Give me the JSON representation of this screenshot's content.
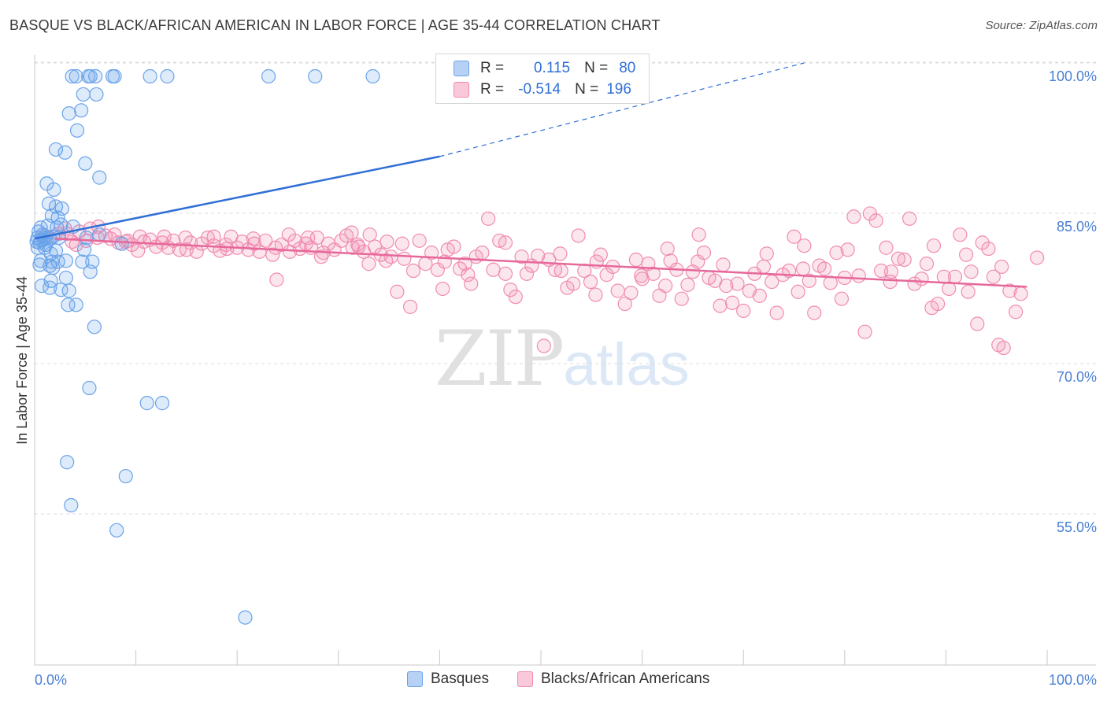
{
  "title": "BASQUE VS BLACK/AFRICAN AMERICAN IN LABOR FORCE | AGE 35-44 CORRELATION CHART",
  "source": "Source: ZipAtlas.com",
  "watermark": {
    "zip": "ZIP",
    "atlas": "atlas"
  },
  "legend": {
    "basques": {
      "r_label": "R =",
      "r_value": "0.115",
      "n_label": "N =",
      "n_value": "80"
    },
    "blacks": {
      "r_label": "R =",
      "r_value": "-0.514",
      "n_label": "N =",
      "n_value": "196"
    }
  },
  "bottom_legend": {
    "basques": "Basques",
    "blacks": "Blacks/African Americans"
  },
  "colors": {
    "blue": "#6aa3ea",
    "blue_line": "#2f6fd6",
    "pink": "#f08cb0",
    "pink_line": "#e6689a"
  },
  "chart_data": {
    "type": "scatter",
    "title": "BASQUE VS BLACK/AFRICAN AMERICAN IN LABOR FORCE | AGE 35-44 CORRELATION CHART",
    "xlabel": "",
    "ylabel": "In Labor Force | Age 35-44",
    "xlim": [
      0,
      100
    ],
    "ylim": [
      43,
      102
    ],
    "x_tick_labels": [
      "0.0%",
      "100.0%"
    ],
    "y_ticks": [
      {
        "value": 100,
        "label": "100.0%"
      },
      {
        "value": 85,
        "label": "85.0%"
      },
      {
        "value": 70,
        "label": "70.0%"
      },
      {
        "value": 55,
        "label": "55.0%"
      }
    ],
    "series": [
      {
        "name": "Basques",
        "R": 0.115,
        "N": 80,
        "trend": {
          "x1": 0,
          "y1": 83.8,
          "x2": 40,
          "y2": 92.0,
          "dash_x2": 76,
          "dash_y2": 100.0
        },
        "points": [
          [
            3.7,
            100
          ],
          [
            4.1,
            100
          ],
          [
            5.3,
            100
          ],
          [
            5.5,
            100
          ],
          [
            6.0,
            100
          ],
          [
            7.7,
            100
          ],
          [
            7.9,
            100
          ],
          [
            11.4,
            100
          ],
          [
            13.1,
            100
          ],
          [
            23.1,
            100
          ],
          [
            27.7,
            100
          ],
          [
            33.4,
            100
          ],
          [
            4.8,
            98.2
          ],
          [
            6.1,
            98.2
          ],
          [
            3.4,
            96.3
          ],
          [
            4.6,
            96.6
          ],
          [
            4.2,
            94.6
          ],
          [
            2.1,
            92.7
          ],
          [
            3.0,
            92.4
          ],
          [
            5.0,
            91.3
          ],
          [
            6.4,
            89.9
          ],
          [
            1.2,
            89.3
          ],
          [
            1.9,
            88.7
          ],
          [
            1.4,
            87.3
          ],
          [
            2.1,
            87.0
          ],
          [
            2.7,
            86.8
          ],
          [
            1.7,
            86.1
          ],
          [
            2.3,
            85.9
          ],
          [
            0.6,
            84.9
          ],
          [
            1.3,
            85.1
          ],
          [
            2.2,
            84.9
          ],
          [
            0.4,
            84.5
          ],
          [
            0.8,
            84.2
          ],
          [
            1.8,
            84.0
          ],
          [
            0.3,
            83.9
          ],
          [
            0.6,
            83.6
          ],
          [
            1.5,
            83.8
          ],
          [
            0.9,
            83.7
          ],
          [
            2.4,
            83.9
          ],
          [
            0.2,
            83.5
          ],
          [
            0.5,
            83.4
          ],
          [
            1.1,
            83.2
          ],
          [
            5.1,
            83.9
          ],
          [
            6.4,
            84.2
          ],
          [
            0.3,
            82.9
          ],
          [
            1.0,
            82.9
          ],
          [
            2.1,
            82.6
          ],
          [
            4.9,
            82.7
          ],
          [
            8.6,
            83.3
          ],
          [
            1.6,
            82.3
          ],
          [
            0.6,
            81.6
          ],
          [
            1.7,
            81.5
          ],
          [
            0.5,
            81.2
          ],
          [
            1.5,
            81.1
          ],
          [
            2.3,
            81.5
          ],
          [
            1.8,
            80.9
          ],
          [
            3.1,
            81.6
          ],
          [
            4.7,
            81.5
          ],
          [
            5.7,
            81.5
          ],
          [
            5.5,
            80.5
          ],
          [
            3.1,
            79.9
          ],
          [
            0.7,
            79.1
          ],
          [
            1.6,
            79.6
          ],
          [
            1.5,
            78.9
          ],
          [
            2.6,
            78.7
          ],
          [
            3.4,
            78.6
          ],
          [
            3.3,
            77.2
          ],
          [
            4.1,
            77.2
          ],
          [
            5.9,
            75.0
          ],
          [
            5.4,
            68.9
          ],
          [
            11.1,
            67.4
          ],
          [
            12.6,
            67.4
          ],
          [
            3.2,
            61.5
          ],
          [
            9.0,
            60.1
          ],
          [
            3.6,
            57.2
          ],
          [
            8.1,
            54.7
          ],
          [
            20.8,
            46.0
          ],
          [
            1.0,
            83.9
          ],
          [
            2.6,
            85.2
          ],
          [
            3.8,
            85.0
          ]
        ]
      },
      {
        "name": "Blacks/African Americans",
        "R": -0.514,
        "N": 196,
        "trend": {
          "x1": 2,
          "y1": 83.8,
          "x2": 98,
          "y2": 79.0
        },
        "points": [
          [
            1.0,
            84.1
          ],
          [
            1.5,
            83.8
          ],
          [
            2.4,
            84.3
          ],
          [
            3.2,
            84.3
          ],
          [
            3.7,
            83.5
          ],
          [
            4.4,
            84.5
          ],
          [
            5.1,
            83.6
          ],
          [
            5.5,
            84.8
          ],
          [
            6.2,
            83.9
          ],
          [
            7.0,
            84.1
          ],
          [
            7.9,
            84.2
          ],
          [
            8.3,
            83.4
          ],
          [
            9.2,
            83.6
          ],
          [
            9.6,
            83.2
          ],
          [
            10.2,
            82.6
          ],
          [
            10.8,
            83.5
          ],
          [
            11.4,
            83.7
          ],
          [
            12.0,
            83.0
          ],
          [
            12.6,
            83.4
          ],
          [
            13.2,
            82.9
          ],
          [
            13.7,
            83.6
          ],
          [
            14.3,
            82.7
          ],
          [
            14.9,
            83.9
          ],
          [
            15.4,
            83.4
          ],
          [
            16.0,
            82.5
          ],
          [
            16.5,
            83.3
          ],
          [
            17.1,
            83.9
          ],
          [
            17.7,
            83.1
          ],
          [
            18.3,
            82.6
          ],
          [
            18.9,
            83.2
          ],
          [
            19.4,
            84.0
          ],
          [
            20.0,
            82.9
          ],
          [
            20.5,
            83.5
          ],
          [
            21.1,
            82.7
          ],
          [
            21.7,
            83.3
          ],
          [
            22.2,
            82.5
          ],
          [
            22.8,
            83.6
          ],
          [
            23.5,
            82.2
          ],
          [
            23.9,
            79.7
          ],
          [
            24.4,
            83.2
          ],
          [
            25.1,
            84.2
          ],
          [
            25.7,
            83.6
          ],
          [
            26.2,
            82.8
          ],
          [
            26.8,
            83.3
          ],
          [
            27.3,
            82.9
          ],
          [
            27.9,
            83.9
          ],
          [
            28.5,
            82.4
          ],
          [
            29.0,
            83.3
          ],
          [
            29.6,
            82.7
          ],
          [
            30.3,
            83.6
          ],
          [
            30.8,
            84.1
          ],
          [
            31.4,
            82.9
          ],
          [
            31.9,
            83.2
          ],
          [
            32.5,
            82.5
          ],
          [
            33.0,
            81.3
          ],
          [
            33.6,
            83.0
          ],
          [
            34.2,
            82.2
          ],
          [
            34.7,
            81.6
          ],
          [
            35.2,
            82.0
          ],
          [
            35.8,
            78.5
          ],
          [
            36.3,
            83.3
          ],
          [
            37.1,
            77.0
          ],
          [
            37.4,
            80.6
          ],
          [
            38.0,
            83.6
          ],
          [
            38.6,
            81.3
          ],
          [
            39.2,
            82.4
          ],
          [
            39.8,
            80.7
          ],
          [
            40.3,
            78.8
          ],
          [
            40.8,
            82.7
          ],
          [
            41.4,
            83.0
          ],
          [
            42.0,
            80.8
          ],
          [
            42.5,
            81.3
          ],
          [
            43.1,
            79.3
          ],
          [
            43.6,
            82.0
          ],
          [
            44.2,
            82.4
          ],
          [
            44.8,
            85.8
          ],
          [
            45.3,
            80.7
          ],
          [
            45.9,
            83.6
          ],
          [
            46.5,
            80.3
          ],
          [
            47.0,
            78.7
          ],
          [
            47.5,
            78.0
          ],
          [
            48.1,
            82.0
          ],
          [
            48.6,
            80.3
          ],
          [
            49.1,
            81.1
          ],
          [
            49.7,
            82.1
          ],
          [
            50.3,
            73.1
          ],
          [
            50.8,
            81.7
          ],
          [
            51.4,
            80.7
          ],
          [
            51.9,
            82.3
          ],
          [
            52.6,
            78.9
          ],
          [
            53.2,
            79.3
          ],
          [
            53.7,
            84.1
          ],
          [
            54.3,
            80.6
          ],
          [
            54.9,
            79.5
          ],
          [
            55.4,
            78.2
          ],
          [
            55.9,
            82.2
          ],
          [
            56.5,
            80.2
          ],
          [
            57.1,
            81.0
          ],
          [
            57.6,
            78.6
          ],
          [
            58.3,
            77.3
          ],
          [
            58.9,
            78.4
          ],
          [
            59.4,
            81.7
          ],
          [
            59.9,
            80.1
          ],
          [
            60.6,
            81.3
          ],
          [
            61.1,
            80.3
          ],
          [
            61.7,
            78.1
          ],
          [
            62.3,
            79.1
          ],
          [
            62.8,
            81.6
          ],
          [
            63.4,
            80.7
          ],
          [
            63.9,
            77.8
          ],
          [
            64.5,
            79.2
          ],
          [
            65.0,
            80.5
          ],
          [
            65.6,
            84.2
          ],
          [
            66.1,
            82.4
          ],
          [
            66.6,
            79.9
          ],
          [
            67.2,
            79.6
          ],
          [
            67.7,
            77.1
          ],
          [
            68.3,
            79.1
          ],
          [
            68.9,
            77.4
          ],
          [
            69.4,
            79.3
          ],
          [
            70.0,
            76.6
          ],
          [
            70.6,
            78.6
          ],
          [
            71.1,
            80.3
          ],
          [
            71.6,
            78.1
          ],
          [
            72.3,
            82.3
          ],
          [
            72.8,
            79.5
          ],
          [
            73.3,
            76.4
          ],
          [
            73.9,
            80.2
          ],
          [
            74.5,
            80.6
          ],
          [
            75.0,
            84.0
          ],
          [
            75.4,
            78.5
          ],
          [
            75.9,
            80.8
          ],
          [
            76.5,
            79.6
          ],
          [
            77.0,
            76.4
          ],
          [
            77.5,
            81.1
          ],
          [
            78.0,
            80.8
          ],
          [
            78.6,
            79.4
          ],
          [
            79.2,
            82.4
          ],
          [
            79.7,
            77.8
          ],
          [
            80.3,
            82.7
          ],
          [
            80.9,
            86.0
          ],
          [
            81.4,
            80.1
          ],
          [
            82.0,
            74.5
          ],
          [
            82.5,
            86.3
          ],
          [
            83.1,
            85.6
          ],
          [
            83.6,
            80.6
          ],
          [
            84.1,
            82.9
          ],
          [
            84.6,
            80.5
          ],
          [
            85.3,
            81.8
          ],
          [
            85.9,
            81.7
          ],
          [
            86.4,
            85.8
          ],
          [
            86.9,
            79.3
          ],
          [
            87.6,
            79.8
          ],
          [
            88.1,
            81.3
          ],
          [
            88.6,
            76.9
          ],
          [
            89.2,
            77.3
          ],
          [
            89.8,
            80.0
          ],
          [
            90.3,
            78.8
          ],
          [
            90.9,
            80.0
          ],
          [
            91.4,
            84.2
          ],
          [
            92.0,
            82.2
          ],
          [
            92.5,
            80.5
          ],
          [
            93.1,
            75.3
          ],
          [
            93.6,
            83.4
          ],
          [
            94.2,
            82.8
          ],
          [
            94.7,
            80.0
          ],
          [
            95.2,
            73.2
          ],
          [
            95.7,
            72.9
          ],
          [
            96.3,
            78.6
          ],
          [
            96.9,
            76.5
          ],
          [
            97.4,
            78.3
          ],
          [
            99.0,
            81.9
          ],
          [
            27.0,
            83.9
          ],
          [
            31.3,
            84.4
          ],
          [
            33.1,
            84.2
          ],
          [
            6.3,
            85.0
          ],
          [
            10.4,
            84.0
          ],
          [
            12.8,
            84.0
          ],
          [
            21.6,
            83.8
          ],
          [
            23.8,
            82.9
          ],
          [
            3.0,
            84.8
          ],
          [
            4.1,
            83.2
          ],
          [
            7.5,
            83.8
          ],
          [
            9.0,
            83.5
          ],
          [
            15.0,
            82.7
          ],
          [
            17.7,
            84.0
          ],
          [
            19.0,
            82.8
          ],
          [
            25.2,
            82.5
          ],
          [
            28.3,
            82.0
          ],
          [
            32.0,
            83.0
          ],
          [
            34.8,
            83.5
          ],
          [
            36.5,
            81.8
          ],
          [
            40.5,
            81.5
          ],
          [
            42.8,
            80.2
          ],
          [
            46.5,
            83.4
          ],
          [
            52.0,
            80.6
          ],
          [
            55.5,
            81.5
          ],
          [
            60.0,
            79.8
          ],
          [
            62.5,
            82.8
          ],
          [
            65.5,
            81.5
          ],
          [
            68.0,
            81.2
          ],
          [
            72.0,
            81.0
          ],
          [
            76.0,
            83.1
          ],
          [
            80.0,
            79.9
          ],
          [
            84.5,
            79.5
          ],
          [
            88.8,
            83.1
          ],
          [
            92.2,
            78.5
          ],
          [
            95.5,
            81.0
          ]
        ]
      }
    ]
  }
}
